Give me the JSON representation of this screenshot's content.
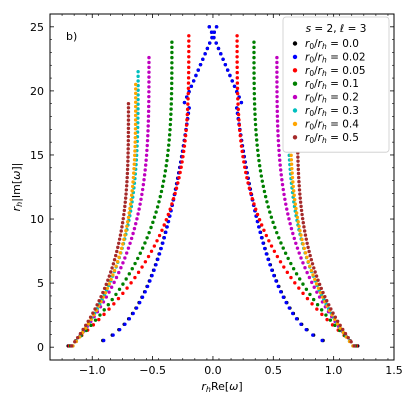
{
  "chart_data": {
    "type": "scatter",
    "panel_label": "b)",
    "xlabel": "r_h Re[ω]",
    "ylabel": "r_h |Im[ω]|",
    "xlim": [
      -1.35,
      1.5
    ],
    "ylim": [
      -1.0,
      26.0
    ],
    "xticks": [
      -1.0,
      -0.5,
      0.0,
      0.5,
      1.0,
      1.5
    ],
    "xtick_labels": [
      "−1.0",
      "−0.5",
      "0.0",
      "0.5",
      "1.0",
      "1.5"
    ],
    "yticks": [
      0,
      5,
      10,
      15,
      20,
      25
    ],
    "ytick_labels": [
      "0",
      "5",
      "10",
      "15",
      "20",
      "25"
    ],
    "legend_title": "s = 2, ℓ = 3",
    "legend_position": "top-right",
    "series": [
      {
        "name": "r0/rh = 0.0",
        "r": 0.0,
        "color": "#000000",
        "top_x": 0.15,
        "top_y": 25.0,
        "end_x": 1.2,
        "branch": "cross"
      },
      {
        "name": "r0/rh = 0.02",
        "r": 0.02,
        "color": "#0000ff",
        "top_x": 0.08,
        "top_y": 25.0,
        "end_x": 1.19,
        "branch": "cross"
      },
      {
        "name": "r0/rh = 0.05",
        "r": 0.05,
        "color": "#ff0000",
        "top_x": 0.2,
        "top_y": 24.3,
        "end_x": 1.19,
        "branch": "out"
      },
      {
        "name": "r0/rh = 0.1",
        "r": 0.1,
        "color": "#008000",
        "top_x": 0.34,
        "top_y": 23.8,
        "end_x": 1.18,
        "branch": "out"
      },
      {
        "name": "r0/rh = 0.2",
        "r": 0.2,
        "color": "#bf00bf",
        "top_x": 0.53,
        "top_y": 22.6,
        "end_x": 1.17,
        "branch": "out"
      },
      {
        "name": "r0/rh = 0.3",
        "r": 0.3,
        "color": "#00bfbf",
        "top_x": 0.62,
        "top_y": 21.5,
        "end_x": 1.16,
        "branch": "out"
      },
      {
        "name": "r0/rh = 0.4",
        "r": 0.4,
        "color": "#ffa500",
        "top_x": 0.64,
        "top_y": 20.5,
        "end_x": 1.16,
        "branch": "out"
      },
      {
        "name": "r0/rh = 0.5",
        "r": 0.5,
        "color": "#a52a2a",
        "top_x": 0.7,
        "top_y": 19.0,
        "end_x": 1.17,
        "branch": "out"
      }
    ]
  }
}
